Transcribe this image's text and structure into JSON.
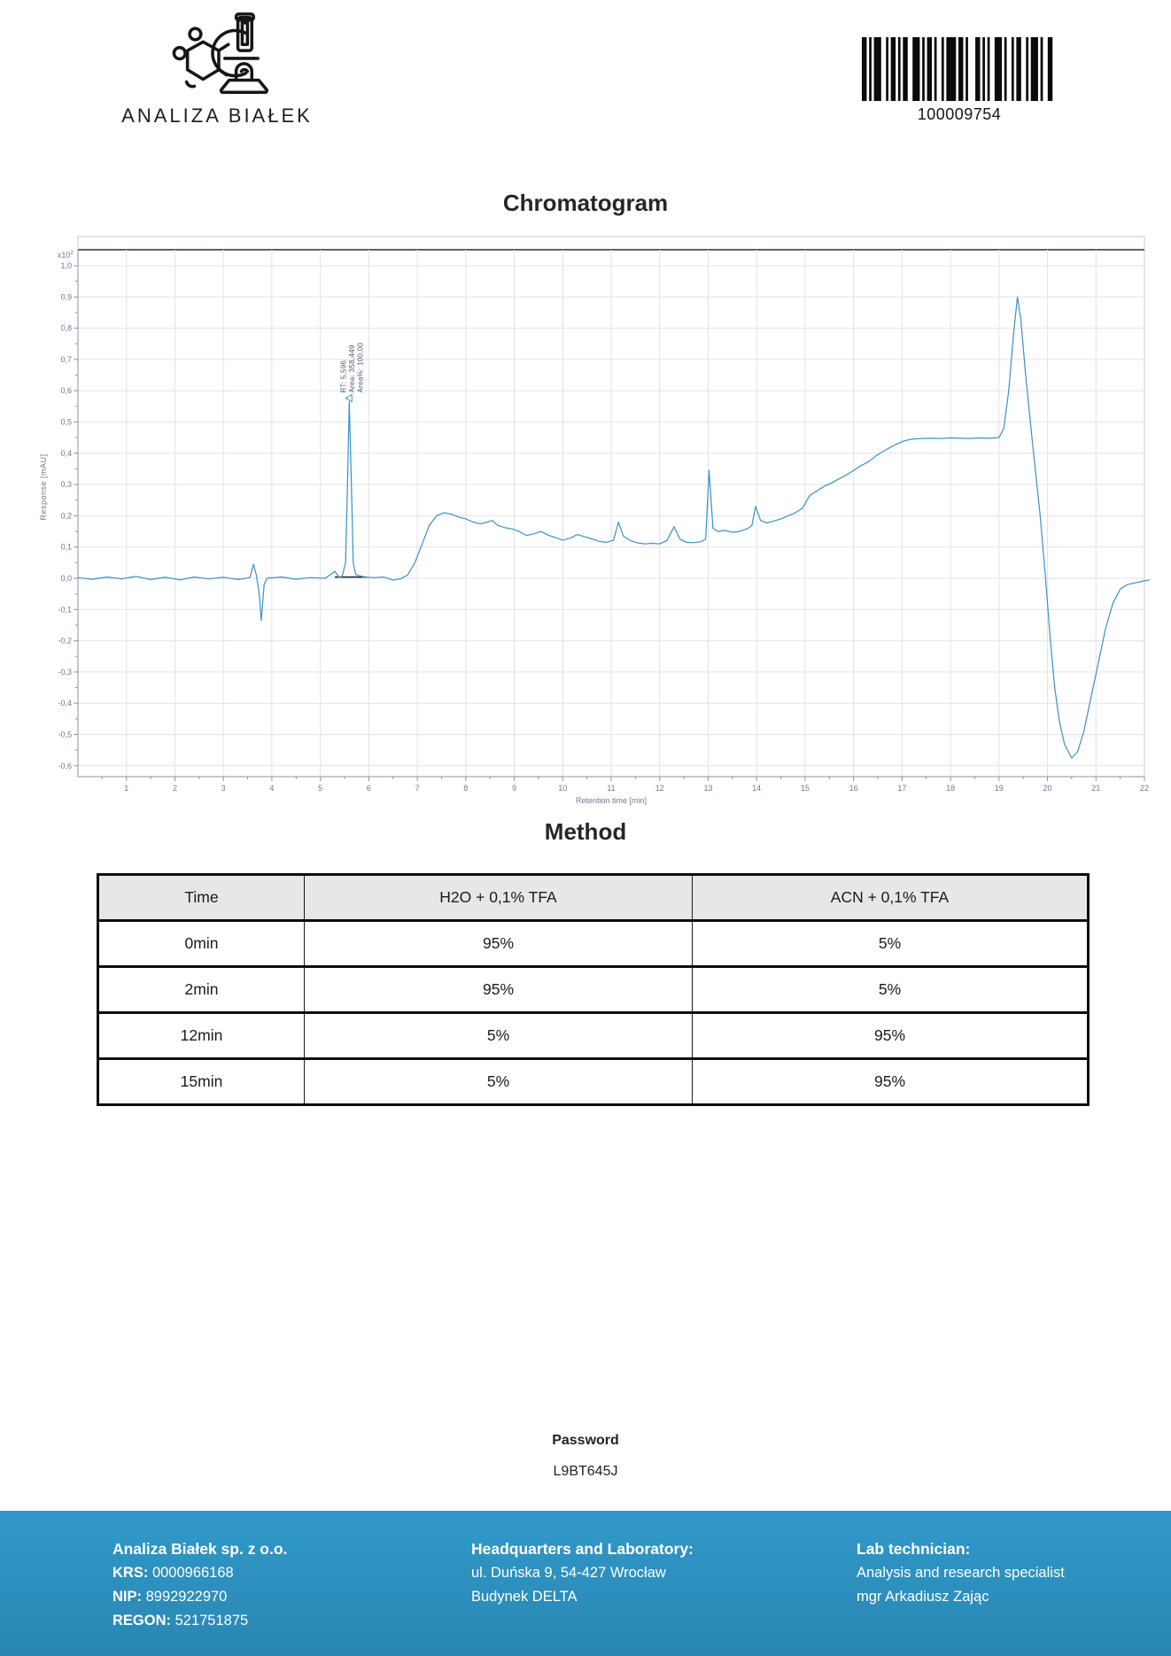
{
  "header": {
    "logo_text": "ANALIZA BIAŁEK",
    "barcode": {
      "value": "100009754",
      "bars": [
        2,
        1,
        1,
        1,
        3,
        2,
        1,
        1,
        2,
        1,
        1,
        1,
        2,
        2,
        3,
        1,
        1,
        1,
        2,
        1,
        1,
        2,
        1,
        1,
        4,
        1,
        2,
        1,
        1,
        3,
        2,
        1,
        1,
        1,
        1,
        2,
        3,
        1,
        1,
        2,
        1,
        1,
        2,
        2,
        1,
        1,
        3,
        1,
        1,
        2,
        2,
        1
      ]
    }
  },
  "chromatogram": {
    "title": "Chromatogram"
  },
  "chart_data": {
    "type": "line",
    "title": "Chromatogram",
    "xlabel": "Retention time [min]",
    "ylabel": "Response [mAU]",
    "scale_note": {
      "base": "x10",
      "exp": "2"
    },
    "xlim": [
      0,
      22.1
    ],
    "ylim": [
      -0.65,
      1.05
    ],
    "x_ticks": [
      1,
      2,
      3,
      4,
      5,
      6,
      7,
      8,
      9,
      10,
      11,
      12,
      13,
      14,
      15,
      16,
      17,
      18,
      19,
      20,
      21,
      22
    ],
    "y_ticks": [
      1.0,
      0.9,
      0.8,
      0.7,
      0.6,
      0.5,
      0.4,
      0.3,
      0.2,
      0.1,
      0.0,
      -0.1,
      -0.2,
      -0.3,
      -0.4,
      -0.5,
      -0.6
    ],
    "grid": true,
    "legend": "none",
    "colors": {
      "trace": "#3a90c5",
      "grid": "#e0e2e6",
      "axis": "#8a93a5",
      "tick_label": "#6e7794",
      "axis_title": "#6f7990",
      "top_line": "#5b6170",
      "border": "#c9ccd4",
      "annotation": "#4e5870",
      "integration": "#1c1c1c"
    },
    "annotation": {
      "rt_label": "RT: 5,596",
      "area_label": "Area: 358,449",
      "area_pct_label": "Area%: 100,00",
      "rt_minutes": 5.596,
      "peak_value": 0.565
    },
    "integration_baseline": {
      "t_start": 5.3,
      "t_end": 5.95,
      "v": 0.004
    },
    "trace_points": [
      [
        0,
        0.002
      ],
      [
        0.3,
        -0.003
      ],
      [
        0.6,
        0.004
      ],
      [
        0.9,
        -0.002
      ],
      [
        1.2,
        0.006
      ],
      [
        1.5,
        -0.004
      ],
      [
        1.8,
        0.003
      ],
      [
        2.1,
        -0.005
      ],
      [
        2.4,
        0.004
      ],
      [
        2.7,
        -0.002
      ],
      [
        3.0,
        0.003
      ],
      [
        3.3,
        -0.004
      ],
      [
        3.55,
        0.002
      ],
      [
        3.62,
        0.045
      ],
      [
        3.68,
        0.01
      ],
      [
        3.74,
        -0.05
      ],
      [
        3.78,
        -0.135
      ],
      [
        3.84,
        -0.02
      ],
      [
        3.9,
        0.0
      ],
      [
        4.2,
        0.004
      ],
      [
        4.5,
        -0.003
      ],
      [
        4.8,
        0.002
      ],
      [
        5.1,
        0.0
      ],
      [
        5.3,
        0.022
      ],
      [
        5.38,
        0.004
      ],
      [
        5.45,
        0.006
      ],
      [
        5.52,
        0.05
      ],
      [
        5.56,
        0.3
      ],
      [
        5.596,
        0.565
      ],
      [
        5.64,
        0.3
      ],
      [
        5.68,
        0.05
      ],
      [
        5.73,
        0.012
      ],
      [
        5.9,
        0.004
      ],
      [
        6.1,
        0.002
      ],
      [
        6.3,
        0.004
      ],
      [
        6.5,
        -0.006
      ],
      [
        6.65,
        -0.002
      ],
      [
        6.8,
        0.01
      ],
      [
        6.95,
        0.05
      ],
      [
        7.1,
        0.11
      ],
      [
        7.25,
        0.17
      ],
      [
        7.4,
        0.2
      ],
      [
        7.55,
        0.21
      ],
      [
        7.7,
        0.205
      ],
      [
        7.85,
        0.196
      ],
      [
        8.0,
        0.19
      ],
      [
        8.15,
        0.18
      ],
      [
        8.3,
        0.174
      ],
      [
        8.45,
        0.18
      ],
      [
        8.55,
        0.185
      ],
      [
        8.65,
        0.17
      ],
      [
        8.8,
        0.162
      ],
      [
        8.95,
        0.158
      ],
      [
        9.1,
        0.15
      ],
      [
        9.25,
        0.137
      ],
      [
        9.4,
        0.142
      ],
      [
        9.55,
        0.15
      ],
      [
        9.7,
        0.138
      ],
      [
        9.85,
        0.13
      ],
      [
        10.0,
        0.122
      ],
      [
        10.15,
        0.128
      ],
      [
        10.3,
        0.14
      ],
      [
        10.45,
        0.133
      ],
      [
        10.6,
        0.126
      ],
      [
        10.75,
        0.118
      ],
      [
        10.9,
        0.115
      ],
      [
        11.05,
        0.122
      ],
      [
        11.15,
        0.18
      ],
      [
        11.25,
        0.135
      ],
      [
        11.4,
        0.12
      ],
      [
        11.55,
        0.113
      ],
      [
        11.7,
        0.11
      ],
      [
        11.85,
        0.112
      ],
      [
        12.0,
        0.11
      ],
      [
        12.15,
        0.121
      ],
      [
        12.3,
        0.165
      ],
      [
        12.42,
        0.125
      ],
      [
        12.55,
        0.115
      ],
      [
        12.7,
        0.114
      ],
      [
        12.85,
        0.117
      ],
      [
        12.95,
        0.125
      ],
      [
        13.02,
        0.345
      ],
      [
        13.1,
        0.16
      ],
      [
        13.2,
        0.15
      ],
      [
        13.35,
        0.153
      ],
      [
        13.5,
        0.147
      ],
      [
        13.65,
        0.15
      ],
      [
        13.8,
        0.158
      ],
      [
        13.9,
        0.168
      ],
      [
        13.98,
        0.23
      ],
      [
        14.08,
        0.185
      ],
      [
        14.2,
        0.177
      ],
      [
        14.35,
        0.183
      ],
      [
        14.5,
        0.19
      ],
      [
        14.65,
        0.2
      ],
      [
        14.8,
        0.21
      ],
      [
        14.95,
        0.225
      ],
      [
        15.1,
        0.266
      ],
      [
        15.25,
        0.28
      ],
      [
        15.4,
        0.295
      ],
      [
        15.55,
        0.305
      ],
      [
        15.7,
        0.318
      ],
      [
        15.85,
        0.33
      ],
      [
        16.0,
        0.345
      ],
      [
        16.15,
        0.36
      ],
      [
        16.3,
        0.372
      ],
      [
        16.45,
        0.39
      ],
      [
        16.6,
        0.405
      ],
      [
        16.75,
        0.418
      ],
      [
        16.9,
        0.43
      ],
      [
        17.05,
        0.44
      ],
      [
        17.2,
        0.445
      ],
      [
        17.4,
        0.447
      ],
      [
        17.6,
        0.448
      ],
      [
        17.8,
        0.447
      ],
      [
        18.0,
        0.449
      ],
      [
        18.2,
        0.448
      ],
      [
        18.4,
        0.447
      ],
      [
        18.6,
        0.449
      ],
      [
        18.8,
        0.448
      ],
      [
        19.0,
        0.45
      ],
      [
        19.1,
        0.48
      ],
      [
        19.2,
        0.6
      ],
      [
        19.3,
        0.78
      ],
      [
        19.38,
        0.9
      ],
      [
        19.45,
        0.83
      ],
      [
        19.55,
        0.65
      ],
      [
        19.7,
        0.42
      ],
      [
        19.85,
        0.2
      ],
      [
        19.95,
        0.02
      ],
      [
        20.05,
        -0.18
      ],
      [
        20.15,
        -0.35
      ],
      [
        20.25,
        -0.46
      ],
      [
        20.35,
        -0.53
      ],
      [
        20.5,
        -0.575
      ],
      [
        20.62,
        -0.555
      ],
      [
        20.75,
        -0.49
      ],
      [
        20.9,
        -0.38
      ],
      [
        21.05,
        -0.27
      ],
      [
        21.2,
        -0.16
      ],
      [
        21.35,
        -0.08
      ],
      [
        21.5,
        -0.035
      ],
      [
        21.65,
        -0.02
      ],
      [
        21.8,
        -0.015
      ],
      [
        21.95,
        -0.01
      ],
      [
        22.1,
        -0.005
      ]
    ]
  },
  "method": {
    "title": "Method",
    "table": {
      "headers": [
        "Time",
        "H2O + 0,1% TFA",
        "ACN + 0,1% TFA"
      ],
      "rows": [
        [
          "0min",
          "95%",
          "5%"
        ],
        [
          "2min",
          "95%",
          "5%"
        ],
        [
          "12min",
          "5%",
          "95%"
        ],
        [
          "15min",
          "5%",
          "95%"
        ]
      ]
    }
  },
  "password": {
    "label": "Password",
    "value": "L9BT645J"
  },
  "footer": {
    "company": {
      "name": "Analiza Białek sp. z o.o.",
      "krs_label": "KRS:",
      "krs": "0000966168",
      "nip_label": "NIP:",
      "nip": "8992922970",
      "regon_label": "REGON:",
      "regon": "521751875"
    },
    "hq": {
      "heading": "Headquarters and Laboratory:",
      "line1": "ul. Duńska 9, 54-427 Wrocław",
      "line2": "Budynek DELTA"
    },
    "tech": {
      "heading": "Lab technician:",
      "line1": "Analysis and research specialist",
      "line2": "mgr Arkadiusz Zając"
    }
  },
  "colors": {
    "footer_blue_top": "#3099c9",
    "footer_blue_bottom": "#2a86b3",
    "table_header_bg": "#e7e7e7",
    "trace_blue": "#3a90c5"
  }
}
